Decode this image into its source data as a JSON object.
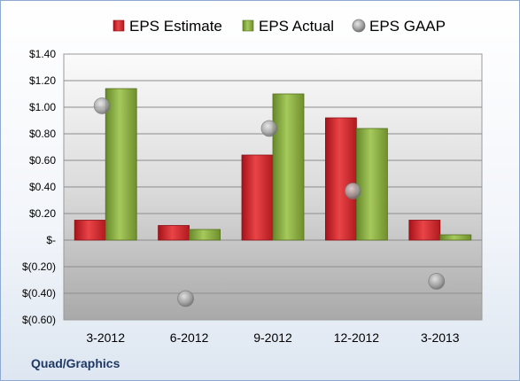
{
  "company": "Quad/Graphics",
  "chart_data": {
    "type": "bar",
    "categories": [
      "3-2012",
      "6-2012",
      "9-2012",
      "12-2012",
      "3-2013"
    ],
    "series": [
      {
        "name": "EPS Estimate",
        "kind": "bar",
        "color": "#d8262a",
        "values": [
          0.15,
          0.11,
          0.64,
          0.92,
          0.15
        ]
      },
      {
        "name": "EPS Actual",
        "kind": "bar",
        "color": "#8db33c",
        "values": [
          1.14,
          0.08,
          1.1,
          0.84,
          0.04
        ]
      },
      {
        "name": "EPS GAAP",
        "kind": "marker",
        "color": "#a6a6a6",
        "values": [
          1.01,
          -0.44,
          0.84,
          0.37,
          -0.31
        ]
      }
    ],
    "yticks": [
      "$1.40",
      "$1.20",
      "$1.00",
      "$0.80",
      "$0.60",
      "$0.40",
      "$0.20",
      "$-",
      "$(0.20)",
      "$(0.40)",
      "$(0.60)"
    ],
    "ylim": [
      -0.6,
      1.4
    ],
    "ystep": 0.2,
    "grid": true,
    "legend": "top"
  }
}
